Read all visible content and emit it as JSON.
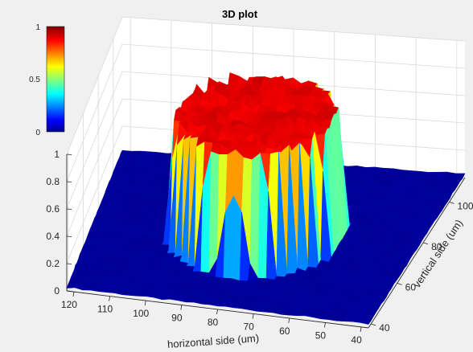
{
  "chart_data": {
    "type": "surface3d",
    "title": "3D plot",
    "xlabel": "horizontal side (um)",
    "ylabel": "vertical side (um)",
    "zlabel": "",
    "xlim": [
      38,
      122
    ],
    "ylim": [
      38,
      112
    ],
    "zlim": [
      0,
      1
    ],
    "x_ticks": [
      120,
      110,
      100,
      90,
      80,
      70,
      60,
      50,
      40
    ],
    "y_ticks": [
      40,
      60,
      80,
      100
    ],
    "z_ticks": [
      0,
      0.2,
      0.4,
      0.6,
      0.8,
      1
    ],
    "x_tick_labels": [
      "120",
      "110",
      "100",
      "90",
      "80",
      "70",
      "60",
      "50",
      "40"
    ],
    "y_tick_labels": [
      "40",
      "60",
      "80",
      "100"
    ],
    "z_tick_labels": [
      "0",
      "0.2",
      "0.4",
      "0.6",
      "0.8",
      "1"
    ],
    "colormap": "jet",
    "colorbar": {
      "ticks": [
        "0",
        "0.5",
        "1"
      ],
      "placement": "top-left"
    },
    "grid": true,
    "surface": {
      "shape": "flat-top disc",
      "center": [
        80,
        75
      ],
      "radius": 22,
      "plateau_z": 0.9,
      "baseline_z": 0.02,
      "inner_dip_z": 0.45
    }
  }
}
